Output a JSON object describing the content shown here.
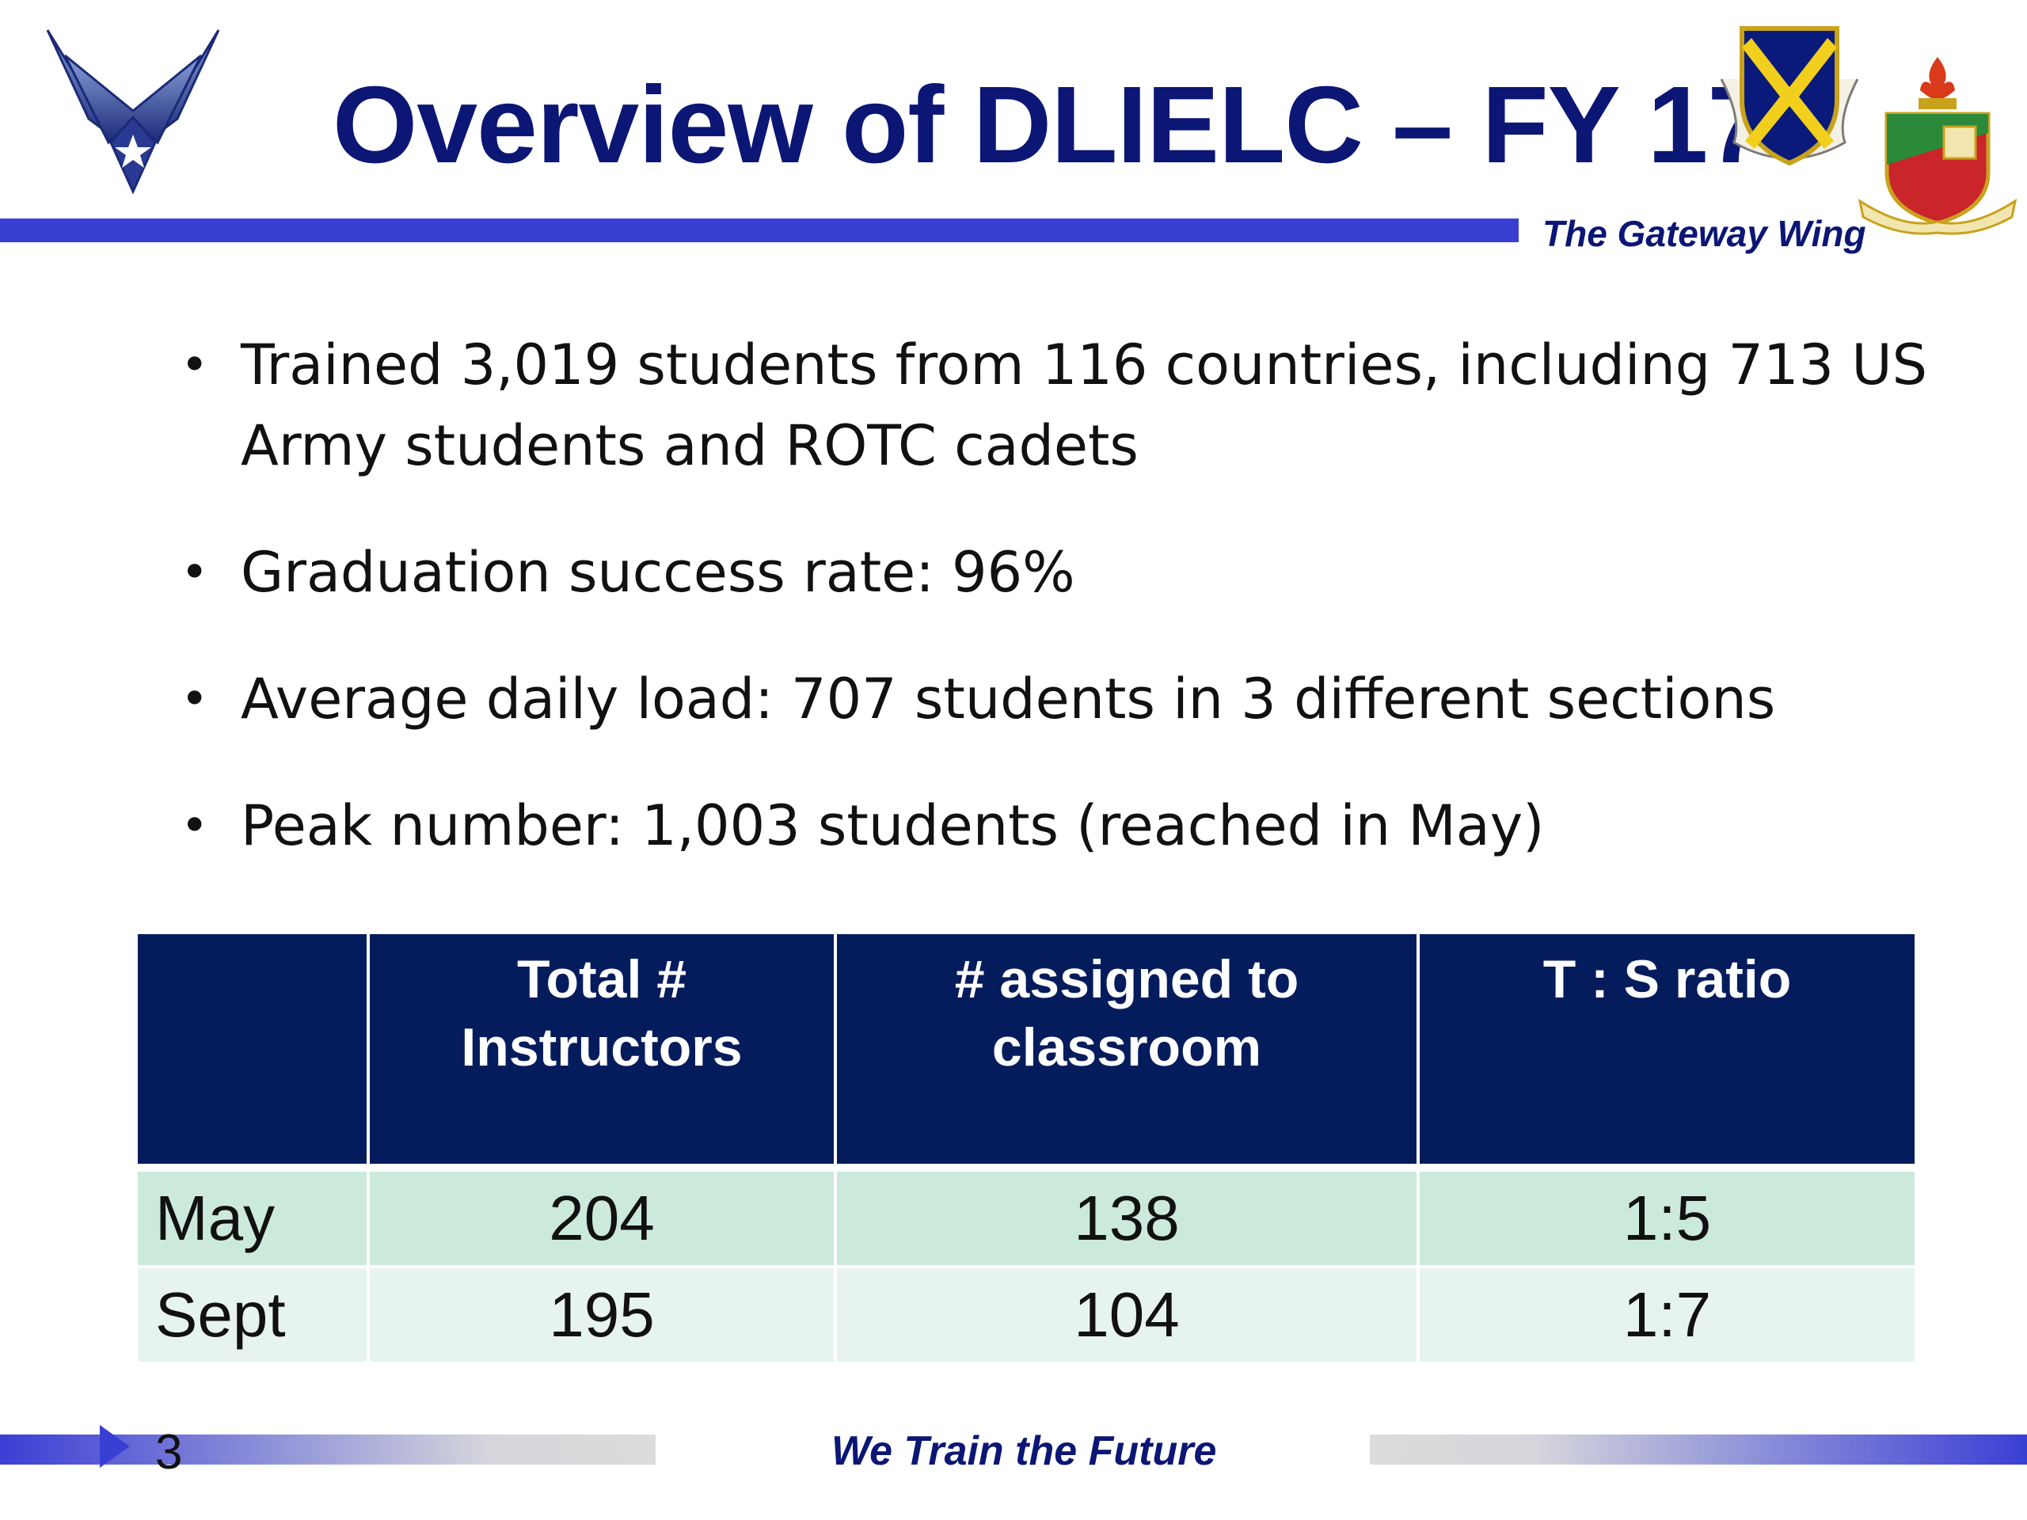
{
  "header": {
    "title": "Overview of DLIELC – FY 17",
    "tagline": "The Gateway Wing"
  },
  "icons": {
    "left_logo": "air-force-wings-logo",
    "right_logo_1": "37th-training-wing-shield",
    "right_logo_2": "defense-language-institute-crest"
  },
  "bullets": [
    "Trained 3,019 students from 116 countries, including 713 US Army students and ROTC cadets",
    "Graduation success rate: 96%",
    "Average daily load: 707 students in 3 different sections",
    "Peak number: 1,003 students (reached in May)"
  ],
  "table": {
    "headers": [
      "",
      "Total # Instructors",
      "# assigned to classroom",
      "T : S ratio"
    ],
    "rows": [
      [
        "May",
        "204",
        "138",
        "1:5"
      ],
      [
        "Sept",
        "195",
        "104",
        "1:7"
      ]
    ]
  },
  "footer": {
    "page_number": "3",
    "tagline": "We Train the Future"
  },
  "colors": {
    "title": "#0b1675",
    "accent_bar": "#3a3fd4",
    "table_header": "#041c5c",
    "row_odd": "#cceadb",
    "row_even": "#e7f4ee"
  }
}
